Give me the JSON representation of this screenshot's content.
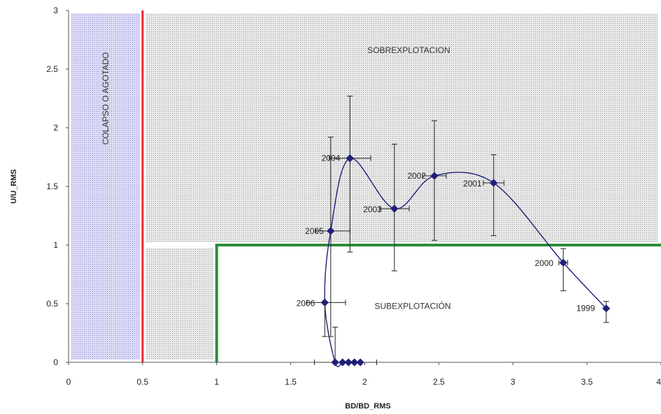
{
  "chart_data": {
    "type": "scatter",
    "xlabel": "BD/BD_RMS",
    "ylabel": "U/U_RMS",
    "xlim": [
      0,
      4
    ],
    "ylim": [
      0,
      3
    ],
    "x_ticks": [
      "0",
      "0.5",
      "1",
      "1.5",
      "2",
      "2.5",
      "3",
      "3.5",
      "4"
    ],
    "y_ticks": [
      "0",
      "0.5",
      "1",
      "1.5",
      "2",
      "2.5",
      "3"
    ],
    "grid": false,
    "regions": [
      {
        "label": "COLAPSO O AGOTADO",
        "x": [
          0,
          0.5
        ],
        "y": [
          0,
          3
        ],
        "color": "#c8c8f0"
      },
      {
        "label": "SOBREXPLOTACION",
        "x": [
          0.5,
          4
        ],
        "y": [
          1,
          3
        ],
        "color": "#d6d6d6"
      },
      {
        "label": "",
        "x": [
          0.5,
          1
        ],
        "y": [
          0,
          1
        ],
        "color": "#d6d6d6"
      },
      {
        "label": "SUBEXPLOTACIÓN",
        "x": [
          1,
          4
        ],
        "y": [
          0,
          1
        ],
        "color": "#ffffff"
      }
    ],
    "reference_lines": [
      {
        "orientation": "vertical",
        "x": 0.5,
        "color": "#e8262c"
      },
      {
        "orientation": "step",
        "points": [
          [
            1,
            0
          ],
          [
            1,
            1
          ],
          [
            4,
            1
          ]
        ],
        "color": "#2e8b3c"
      }
    ],
    "series": [
      {
        "color": "#1f1f7a",
        "points": [
          {
            "label": "1999",
            "x": 3.63,
            "y": 0.46,
            "xerr": [
              3.63,
              3.63
            ],
            "yerr": [
              0.34,
              0.52
            ]
          },
          {
            "label": "2000",
            "x": 3.34,
            "y": 0.85,
            "xerr": [
              3.31,
              3.37
            ],
            "yerr": [
              0.61,
              0.97
            ]
          },
          {
            "label": "2001",
            "x": 2.87,
            "y": 1.53,
            "xerr": [
              2.8,
              2.94
            ],
            "yerr": [
              1.08,
              1.77
            ]
          },
          {
            "label": "2002",
            "x": 2.47,
            "y": 1.59,
            "xerr": [
              2.39,
              2.55
            ],
            "yerr": [
              1.04,
              2.06
            ]
          },
          {
            "label": "2003",
            "x": 2.2,
            "y": 1.31,
            "xerr": [
              2.1,
              2.3
            ],
            "yerr": [
              0.78,
              1.86
            ]
          },
          {
            "label": "2004",
            "x": 1.9,
            "y": 1.74,
            "xerr": [
              1.76,
              2.04
            ],
            "yerr": [
              0.94,
              2.27
            ]
          },
          {
            "label": "2005",
            "x": 1.77,
            "y": 1.12,
            "xerr": [
              1.67,
              1.9
            ],
            "yerr": [
              0.22,
              1.92
            ]
          },
          {
            "label": "2006",
            "x": 1.73,
            "y": 0.51,
            "xerr": [
              1.61,
              1.87
            ],
            "yerr": [
              0.22,
              0.51
            ]
          },
          {
            "label": "",
            "x": 1.8,
            "y": 0.0,
            "xerr": [
              1.66,
              2.08
            ],
            "yerr": [
              0.0,
              0.3
            ]
          },
          {
            "label": "",
            "x": 1.85,
            "y": 0.0,
            "xerr": [
              1.85,
              1.85
            ],
            "yerr": [
              0.0,
              0.0
            ]
          },
          {
            "label": "",
            "x": 1.89,
            "y": 0.0,
            "xerr": [
              1.89,
              1.89
            ],
            "yerr": [
              0.0,
              0.0
            ]
          },
          {
            "label": "",
            "x": 1.93,
            "y": 0.0,
            "xerr": [
              1.93,
              1.93
            ],
            "yerr": [
              0.0,
              0.0
            ]
          },
          {
            "label": "",
            "x": 1.97,
            "y": 0.0,
            "xerr": [
              1.97,
              1.97
            ],
            "yerr": [
              0.0,
              0.0
            ]
          }
        ]
      }
    ]
  }
}
